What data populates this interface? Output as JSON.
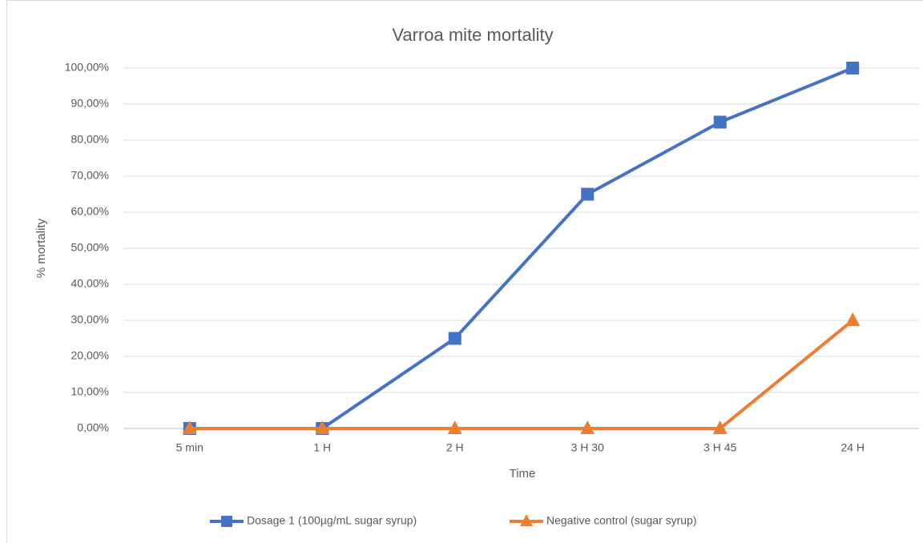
{
  "chart_data": {
    "type": "line",
    "title": "Varroa mite mortality",
    "x_label": "Time",
    "y_label": "% mortality",
    "categories": [
      "5 min",
      "1 H",
      "2 H",
      "3 H 30",
      "3 H 45",
      "24 H"
    ],
    "series": [
      {
        "name": "Dosage 1 (100µg/mL sugar syrup)",
        "color": "#4472c4",
        "marker": "square",
        "values": [
          0,
          0,
          25,
          65,
          85,
          100
        ]
      },
      {
        "name": "Negative control (sugar syrup)",
        "color": "#ed7d31",
        "marker": "triangle",
        "values": [
          0,
          0,
          0,
          0,
          0,
          30
        ]
      }
    ],
    "ylim": [
      0,
      100
    ],
    "yticks": [
      {
        "value": 0,
        "label": "0,00%"
      },
      {
        "value": 10,
        "label": "10,00%"
      },
      {
        "value": 20,
        "label": "20,00%"
      },
      {
        "value": 30,
        "label": "30,00%"
      },
      {
        "value": 40,
        "label": "40,00%"
      },
      {
        "value": 50,
        "label": "50,00%"
      },
      {
        "value": 60,
        "label": "60,00%"
      },
      {
        "value": 70,
        "label": "70,00%"
      },
      {
        "value": 80,
        "label": "80,00%"
      },
      {
        "value": 90,
        "label": "90,00%"
      },
      {
        "value": 100,
        "label": "100,00%"
      }
    ],
    "grid": true,
    "legend": "bottom"
  }
}
